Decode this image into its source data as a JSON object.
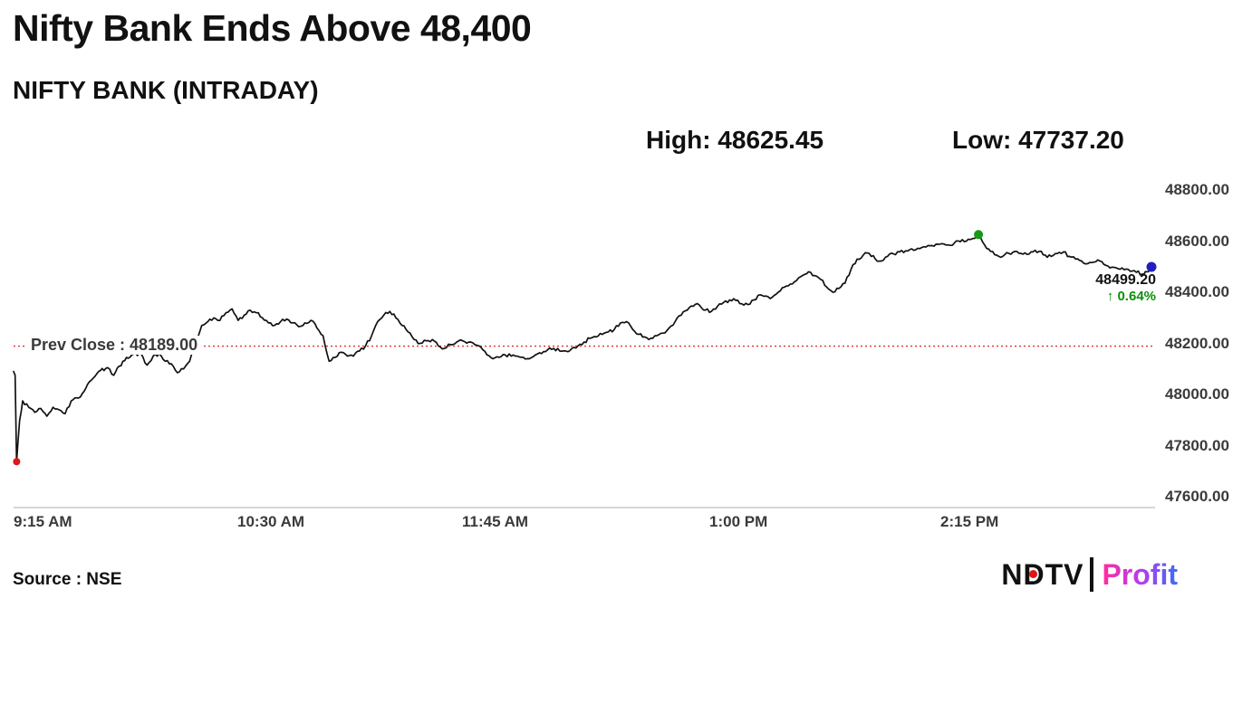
{
  "header": {
    "title": "Nifty Bank Ends Above 48,400",
    "subtitle": "NIFTY BANK (INTRADAY)",
    "high_label": "High: 48625.45",
    "low_label": "Low: 47737.20"
  },
  "chart_data": {
    "type": "line",
    "title": "NIFTY BANK (INTRADAY)",
    "x_axis": {
      "unit": "time of day",
      "tick_labels": [
        "9:15 AM",
        "10:30 AM",
        "11:45 AM",
        "1:00 PM",
        "2:15 PM"
      ],
      "tick_minutes": [
        0,
        75,
        150,
        225,
        300
      ],
      "range_minutes": [
        0,
        375
      ]
    },
    "y_axis": {
      "tick_labels": [
        "48800.00",
        "48600.00",
        "48400.00",
        "48200.00",
        "48000.00",
        "47800.00",
        "47600.00"
      ],
      "range": [
        47600,
        48800
      ],
      "grid": false
    },
    "legend": "none",
    "prev_close": 48189.0,
    "prev_close_label": "Prev Close : 48189.00",
    "high": 48625.45,
    "low": 47737.2,
    "last": 48499.2,
    "last_label": "48499.20",
    "change_label": "↑ 0.64%",
    "colors": {
      "line": "#111111",
      "prev_close_line": "#e03131",
      "change_text": "#0a8f0a",
      "marker_low": "#e01515",
      "marker_high": "#169a16",
      "marker_last": "#2020c0",
      "axis_line": "#c9c9c9"
    },
    "markers": [
      {
        "id": "marker-low",
        "name": "session-low",
        "t": 1,
        "price": 47737.2,
        "color": "#e01515",
        "r": 4
      },
      {
        "id": "marker-high",
        "name": "session-high",
        "t": 318,
        "price": 48625.45,
        "color": "#169a16",
        "r": 5
      },
      {
        "id": "marker-last",
        "name": "last-price",
        "t": 375,
        "price": 48499.2,
        "color": "#2020c0",
        "r": 5.5
      }
    ],
    "series": [
      {
        "name": "NIFTY BANK",
        "points": [
          [
            0,
            48090
          ],
          [
            0.5,
            48075
          ],
          [
            1,
            47737.2
          ],
          [
            2,
            47900
          ],
          [
            3,
            47975
          ],
          [
            5,
            47950
          ],
          [
            7,
            47930
          ],
          [
            9,
            47945
          ],
          [
            11,
            47915
          ],
          [
            13,
            47950
          ],
          [
            15,
            47940
          ],
          [
            17,
            47925
          ],
          [
            19,
            47975
          ],
          [
            22,
            47990
          ],
          [
            25,
            48050
          ],
          [
            28,
            48090
          ],
          [
            31,
            48105
          ],
          [
            33,
            48075
          ],
          [
            36,
            48130
          ],
          [
            39,
            48155
          ],
          [
            42,
            48160
          ],
          [
            44,
            48115
          ],
          [
            46,
            48150
          ],
          [
            48,
            48160
          ],
          [
            50,
            48130
          ],
          [
            52,
            48120
          ],
          [
            54,
            48085
          ],
          [
            56,
            48100
          ],
          [
            58,
            48130
          ],
          [
            60,
            48200
          ],
          [
            62,
            48270
          ],
          [
            64,
            48285
          ],
          [
            66,
            48300
          ],
          [
            68,
            48290
          ],
          [
            70,
            48320
          ],
          [
            72,
            48335
          ],
          [
            74,
            48290
          ],
          [
            76,
            48310
          ],
          [
            78,
            48330
          ],
          [
            80,
            48320
          ],
          [
            82,
            48300
          ],
          [
            84,
            48280
          ],
          [
            86,
            48270
          ],
          [
            88,
            48285
          ],
          [
            90,
            48295
          ],
          [
            92,
            48280
          ],
          [
            94,
            48265
          ],
          [
            96,
            48280
          ],
          [
            98,
            48290
          ],
          [
            100,
            48260
          ],
          [
            102,
            48230
          ],
          [
            104,
            48130
          ],
          [
            106,
            48145
          ],
          [
            108,
            48165
          ],
          [
            110,
            48150
          ],
          [
            112,
            48150
          ],
          [
            114,
            48170
          ],
          [
            116,
            48190
          ],
          [
            118,
            48230
          ],
          [
            120,
            48285
          ],
          [
            122,
            48310
          ],
          [
            124,
            48325
          ],
          [
            126,
            48300
          ],
          [
            128,
            48270
          ],
          [
            130,
            48245
          ],
          [
            132,
            48215
          ],
          [
            134,
            48200
          ],
          [
            136,
            48210
          ],
          [
            138,
            48215
          ],
          [
            140,
            48190
          ],
          [
            142,
            48180
          ],
          [
            144,
            48195
          ],
          [
            146,
            48205
          ],
          [
            148,
            48210
          ],
          [
            150,
            48205
          ],
          [
            152,
            48195
          ],
          [
            154,
            48185
          ],
          [
            156,
            48155
          ],
          [
            158,
            48140
          ],
          [
            160,
            48145
          ],
          [
            162,
            48155
          ],
          [
            164,
            48150
          ],
          [
            166,
            48150
          ],
          [
            168,
            48145
          ],
          [
            170,
            48140
          ],
          [
            172,
            48155
          ],
          [
            174,
            48160
          ],
          [
            176,
            48175
          ],
          [
            178,
            48180
          ],
          [
            180,
            48170
          ],
          [
            182,
            48170
          ],
          [
            184,
            48180
          ],
          [
            186,
            48190
          ],
          [
            188,
            48205
          ],
          [
            190,
            48220
          ],
          [
            192,
            48225
          ],
          [
            194,
            48235
          ],
          [
            196,
            48245
          ],
          [
            198,
            48255
          ],
          [
            200,
            48280
          ],
          [
            202,
            48285
          ],
          [
            204,
            48255
          ],
          [
            206,
            48235
          ],
          [
            208,
            48225
          ],
          [
            210,
            48220
          ],
          [
            212,
            48230
          ],
          [
            214,
            48240
          ],
          [
            216,
            48260
          ],
          [
            218,
            48285
          ],
          [
            220,
            48310
          ],
          [
            222,
            48330
          ],
          [
            224,
            48345
          ],
          [
            226,
            48350
          ],
          [
            228,
            48330
          ],
          [
            230,
            48325
          ],
          [
            232,
            48345
          ],
          [
            234,
            48360
          ],
          [
            236,
            48370
          ],
          [
            238,
            48368
          ],
          [
            240,
            48355
          ],
          [
            242,
            48352
          ],
          [
            244,
            48370
          ],
          [
            246,
            48390
          ],
          [
            248,
            48385
          ],
          [
            250,
            48380
          ],
          [
            252,
            48400
          ],
          [
            254,
            48420
          ],
          [
            256,
            48432
          ],
          [
            258,
            48445
          ],
          [
            260,
            48465
          ],
          [
            262,
            48480
          ],
          [
            264,
            48465
          ],
          [
            266,
            48450
          ],
          [
            268,
            48420
          ],
          [
            270,
            48400
          ],
          [
            272,
            48415
          ],
          [
            274,
            48435
          ],
          [
            276,
            48490
          ],
          [
            278,
            48530
          ],
          [
            280,
            48545
          ],
          [
            282,
            48552
          ],
          [
            284,
            48530
          ],
          [
            286,
            48522
          ],
          [
            288,
            48540
          ],
          [
            290,
            48550
          ],
          [
            292,
            48558
          ],
          [
            294,
            48562
          ],
          [
            296,
            48570
          ],
          [
            298,
            48572
          ],
          [
            300,
            48578
          ],
          [
            302,
            48582
          ],
          [
            304,
            48588
          ],
          [
            306,
            48590
          ],
          [
            308,
            48585
          ],
          [
            310,
            48592
          ],
          [
            312,
            48598
          ],
          [
            314,
            48600
          ],
          [
            316,
            48610
          ],
          [
            318,
            48625.45
          ],
          [
            320,
            48585
          ],
          [
            322,
            48560
          ],
          [
            324,
            48545
          ],
          [
            326,
            48540
          ],
          [
            328,
            48552
          ],
          [
            330,
            48560
          ],
          [
            332,
            48552
          ],
          [
            334,
            48548
          ],
          [
            336,
            48558
          ],
          [
            338,
            48560
          ],
          [
            340,
            48545
          ],
          [
            342,
            48540
          ],
          [
            344,
            48552
          ],
          [
            346,
            48558
          ],
          [
            348,
            48540
          ],
          [
            350,
            48530
          ],
          [
            352,
            48522
          ],
          [
            354,
            48512
          ],
          [
            356,
            48518
          ],
          [
            358,
            48522
          ],
          [
            360,
            48505
          ],
          [
            362,
            48498
          ],
          [
            364,
            48492
          ],
          [
            366,
            48488
          ],
          [
            368,
            48482
          ],
          [
            370,
            48478
          ],
          [
            372,
            48472
          ],
          [
            373.5,
            48480
          ],
          [
            375,
            48499.2
          ]
        ]
      }
    ]
  },
  "footer": {
    "source": "Source : NSE",
    "logo": {
      "ndtv": "NDTV",
      "separator": "|",
      "profit": "Profit",
      "ndtv_color": "#111111",
      "ndtv_dot_color": "#e01515",
      "profit_gradient": [
        "#ff2e9e",
        "#b13df0",
        "#3b6cf5"
      ]
    }
  }
}
